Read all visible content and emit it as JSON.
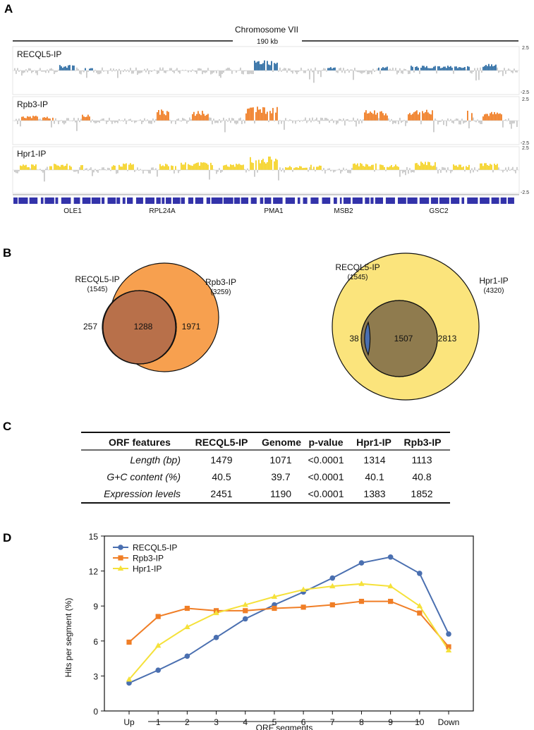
{
  "panels": {
    "a": "A",
    "b": "B",
    "c": "C",
    "d": "D"
  },
  "panel_a": {
    "chromosome": "Chromosome VII",
    "scale": "190 kb",
    "tracks": [
      {
        "name": "RECQL5-IP",
        "color": "#2e6da4",
        "ymax": "2.5",
        "ymin": "-2.5"
      },
      {
        "name": "Rpb3-IP",
        "color": "#f07e26",
        "ymax": "2.5",
        "ymin": "-2.5"
      },
      {
        "name": "Hpr1-IP",
        "color": "#f5d327",
        "ymax": "2.5",
        "ymin": "-2.5"
      }
    ],
    "genes": [
      "OLE1",
      "RPL24A",
      "PMA1",
      "MSB2",
      "GSC2"
    ],
    "gene_color": "#3333aa"
  },
  "panel_b": {
    "venn1": {
      "a_name": "RECQL5-IP",
      "a_count": "(1545)",
      "b_name": "Rpb3-IP",
      "b_count": "(3259)",
      "only_a": "257",
      "both": "1288",
      "only_b": "1971",
      "a_color": "#4a6fb0",
      "b_color": "#f7a04f",
      "overlap_color": "#b8704a"
    },
    "venn2": {
      "a_name": "RECQL5-IP",
      "a_count": "(1545)",
      "b_name": "Hpr1-IP",
      "b_count": "(4320)",
      "only_a": "38",
      "both": "1507",
      "only_b": "2813",
      "a_color": "#4a6fb0",
      "b_color": "#fbe47c",
      "overlap_color": "#8f7b4e"
    }
  },
  "panel_c": {
    "headers": [
      "ORF features",
      "RECQL5-IP",
      "Genome",
      "p-value",
      "Hpr1-IP",
      "Rpb3-IP"
    ],
    "rows": [
      [
        "Length (bp)",
        "1479",
        "1071",
        "<0.0001",
        "1314",
        "1113"
      ],
      [
        "G+C content (%)",
        "40.5",
        "39.7",
        "<0.0001",
        "40.1",
        "40.8"
      ],
      [
        "Expression levels",
        "2451",
        "1190",
        "<0.0001",
        "1383",
        "1852"
      ]
    ]
  },
  "chart_data": {
    "type": "line",
    "categories": [
      "Up",
      "1",
      "2",
      "3",
      "4",
      "5",
      "6",
      "7",
      "8",
      "9",
      "10",
      "Down"
    ],
    "series": [
      {
        "name": "RECQL5-IP",
        "color": "#4a6fb0",
        "marker": "circle",
        "values": [
          2.4,
          3.5,
          4.7,
          6.3,
          7.9,
          9.1,
          10.2,
          11.4,
          12.7,
          13.2,
          11.8,
          6.6
        ]
      },
      {
        "name": "Rpb3-IP",
        "color": "#f07e26",
        "marker": "square",
        "values": [
          5.9,
          8.1,
          8.8,
          8.6,
          8.6,
          8.8,
          8.9,
          9.1,
          9.4,
          9.4,
          8.4,
          5.5
        ]
      },
      {
        "name": "Hpr1-IP",
        "color": "#f5e13a",
        "marker": "triangle",
        "values": [
          2.7,
          5.6,
          7.2,
          8.4,
          9.1,
          9.8,
          10.4,
          10.7,
          10.9,
          10.7,
          9.0,
          5.2
        ]
      }
    ],
    "ylabel": "Hits per segment (%)",
    "xlabel": "ORF segments",
    "ylim": [
      0,
      15
    ],
    "yticks": [
      "0",
      "3",
      "6",
      "9",
      "12",
      "15"
    ],
    "legend": "top-left"
  }
}
